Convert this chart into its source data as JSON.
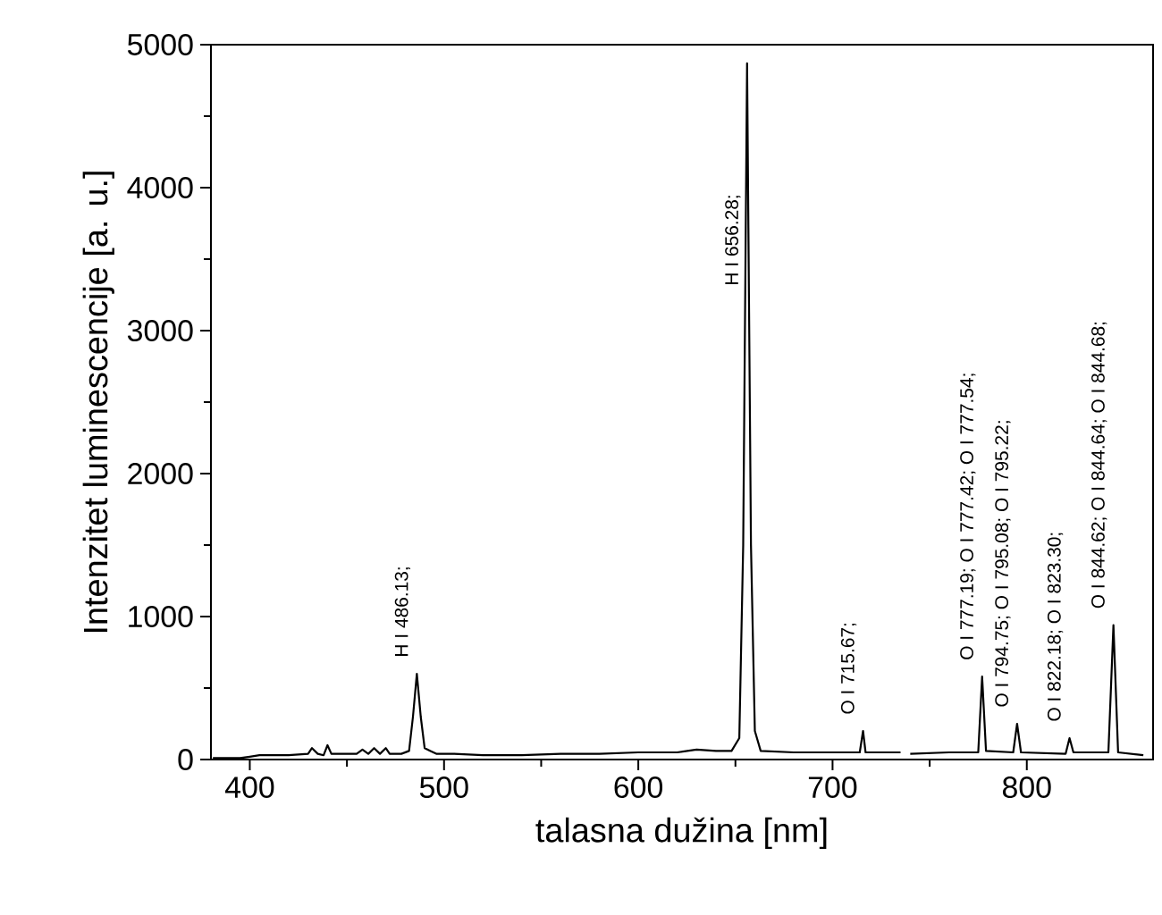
{
  "chart_data": {
    "type": "line",
    "xlabel": "talasna dužina [nm]",
    "ylabel": "Intenzitet luminescencije [a. u.]",
    "xlim": [
      380,
      865
    ],
    "ylim": [
      0,
      5000
    ],
    "xticks": [
      400,
      500,
      600,
      700,
      800
    ],
    "yticks": [
      0,
      1000,
      2000,
      3000,
      4000,
      5000
    ],
    "grid": false,
    "marker": "none",
    "line_style": "solid",
    "series": [
      {
        "color": "#000000",
        "x": [
          381,
          395,
          400,
          405,
          410,
          420,
          430,
          432,
          435,
          438,
          440,
          442,
          450,
          455,
          458,
          461,
          464,
          467,
          470,
          472,
          478,
          482,
          484,
          486,
          488,
          490,
          493,
          496,
          505,
          520,
          540,
          560,
          580,
          600,
          620,
          630,
          640,
          648,
          652,
          654,
          656,
          658,
          660,
          663,
          680,
          700,
          714,
          715.7,
          717,
          735,
          737,
          740,
          760,
          775,
          777,
          779,
          793,
          795,
          797,
          820,
          822,
          824,
          842,
          844.6,
          847,
          860
        ],
        "values": [
          10,
          10,
          20,
          30,
          30,
          30,
          40,
          80,
          40,
          30,
          100,
          40,
          40,
          40,
          70,
          40,
          80,
          40,
          80,
          40,
          40,
          60,
          300,
          600,
          300,
          80,
          60,
          40,
          40,
          30,
          30,
          40,
          40,
          50,
          50,
          70,
          60,
          60,
          150,
          1500,
          4870,
          1500,
          200,
          60,
          50,
          50,
          50,
          200,
          50,
          50,
          null,
          40,
          50,
          50,
          580,
          60,
          50,
          250,
          50,
          40,
          150,
          50,
          50,
          940,
          50,
          30
        ]
      }
    ],
    "annotations": [
      {
        "text": "H I 486.13;",
        "x": 486,
        "y": 600
      },
      {
        "text": "H I 656.28;",
        "x": 656,
        "y": 3200
      },
      {
        "text": "O I 715.67;",
        "x": 715.7,
        "y": 200
      },
      {
        "text": "O I 777.19; O I 777.42; O I 777.54;",
        "x": 777,
        "y": 580
      },
      {
        "text": "O I 794.75; O I 795.08; O I 795.22;",
        "x": 795,
        "y": 250
      },
      {
        "text": "O I 822.18; O I 823.30;",
        "x": 822,
        "y": 150
      },
      {
        "text": "O I 844.62; O I 844.64; O I 844.68;",
        "x": 844.6,
        "y": 940
      }
    ]
  }
}
